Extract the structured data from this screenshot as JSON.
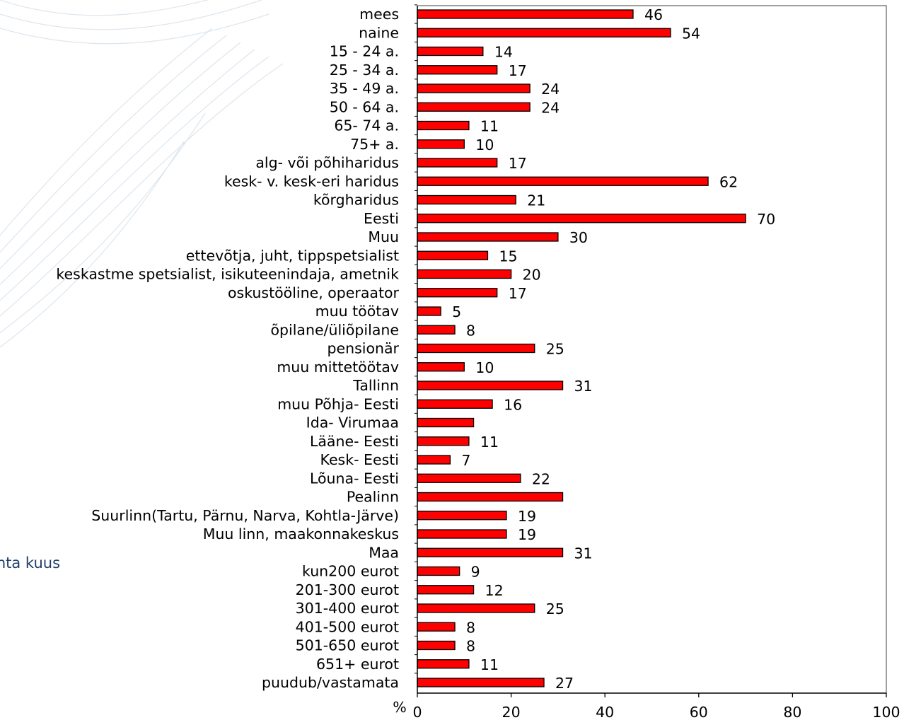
{
  "side_text": "ohta kuus",
  "chart_data": {
    "type": "bar",
    "orientation": "horizontal",
    "categories": [
      "mees",
      "naine",
      "15 - 24 a.",
      "25 - 34 a.",
      "35 - 49 a.",
      "50 - 64 a.",
      "65- 74 a.",
      "75+ a.",
      "alg- või põhiharidus",
      "kesk- v. kesk-eri haridus",
      "kõrgharidus",
      "Eesti",
      "Muu",
      "ettevõtja, juht, tippspetsialist",
      "keskastme spetsialist, isikuteenindaja, ametnik",
      "oskustööline, operaator",
      "muu töötav",
      "õpilane/üliõpilane",
      "pensionär",
      "muu mittetöötav",
      "Tallinn",
      "muu Põhja- Eesti",
      "Ida- Virumaa",
      "Lääne- Eesti",
      "Kesk- Eesti",
      "Lõuna- Eesti",
      "Pealinn",
      "Suurlinn(Tartu, Pärnu, Narva, Kohtla-Järve)",
      "Muu linn, maakonnakeskus",
      "Maa",
      "kun200 eurot",
      "201-300 eurot",
      "301-400 eurot",
      "401-500 eurot",
      "501-650 eurot",
      "651+ eurot",
      "puudub/vastamata"
    ],
    "values": [
      46,
      54,
      14,
      17,
      24,
      24,
      11,
      10,
      17,
      62,
      21,
      70,
      30,
      15,
      20,
      17,
      5,
      8,
      25,
      10,
      31,
      16,
      12,
      11,
      7,
      22,
      31,
      19,
      19,
      31,
      9,
      12,
      25,
      8,
      8,
      11,
      27
    ],
    "value_labels": [
      "46",
      "54",
      "14",
      "17",
      "24",
      "24",
      "11",
      "10",
      "17",
      "62",
      "21",
      "70",
      "30",
      "15",
      "20",
      "17",
      "5",
      "8",
      "25",
      "10",
      "31",
      "16",
      "",
      "11",
      "7",
      "22",
      "",
      "19",
      "19",
      "31",
      "9",
      "12",
      "25",
      "8",
      "8",
      "11",
      "27"
    ],
    "xlabel": "%",
    "xlim": [
      0,
      100
    ],
    "xticks": [
      0,
      20,
      40,
      60,
      80,
      100
    ],
    "bar_color": "#ff0000",
    "bar_edge_color": "#000000",
    "grid": false
  }
}
